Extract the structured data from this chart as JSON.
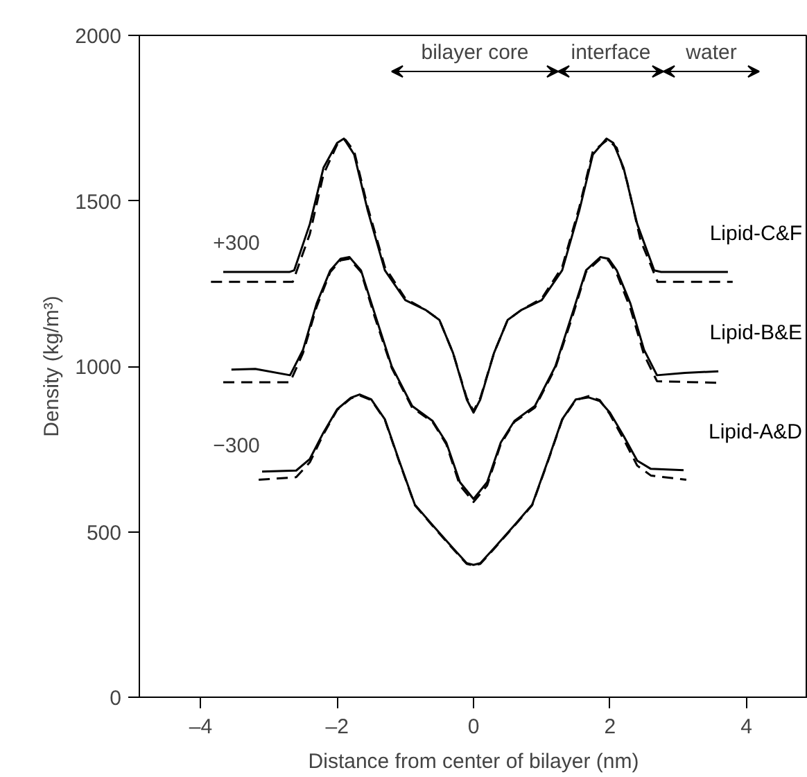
{
  "chart_data": {
    "type": "line",
    "xlabel": "Distance from center of bilayer (nm)",
    "ylabel": "Density (kg/m³)",
    "xlim": [
      -4.9,
      4.9
    ],
    "ylim": [
      0,
      2000
    ],
    "xticks": [
      {
        "value": -4,
        "label": "–4"
      },
      {
        "value": -2,
        "label": "–2"
      },
      0,
      2,
      4
    ],
    "yticks": [
      0,
      500,
      1000,
      1500,
      2000
    ],
    "grid": false,
    "marker": "none",
    "series": [
      {
        "name": "Lipid-C&F",
        "color": "#000000",
        "line_style": "solid",
        "x": [
          -3.67,
          -2.7,
          -2.63,
          -2.4,
          -2.2,
          -2.0,
          -1.9,
          -1.75,
          -1.55,
          -1.3,
          -1.0,
          -0.7,
          -0.5,
          -0.3,
          -0.1,
          0,
          0.1,
          0.3,
          0.5,
          0.7,
          1.0,
          1.3,
          1.55,
          1.75,
          1.95,
          2.05,
          2.2,
          2.4,
          2.65,
          2.75,
          3.73
        ],
        "values": [
          1285,
          1285,
          1290,
          1430,
          1600,
          1675,
          1688,
          1640,
          1470,
          1290,
          1200,
          1170,
          1140,
          1040,
          900,
          860,
          900,
          1040,
          1140,
          1170,
          1200,
          1290,
          1470,
          1640,
          1688,
          1675,
          1600,
          1430,
          1290,
          1285,
          1285
        ]
      },
      {
        "color": "#000000",
        "line_style": "dashed",
        "x": [
          -3.85,
          -2.65,
          -2.4,
          -2.2,
          -2.0,
          -1.88,
          -1.75,
          -1.55,
          -1.3,
          -1.0,
          -0.7,
          -0.5,
          -0.3,
          -0.1,
          0,
          0.1,
          0.3,
          0.5,
          0.7,
          1.0,
          1.3,
          1.55,
          1.75,
          1.97,
          2.1,
          2.25,
          2.45,
          2.7,
          3.8
        ],
        "values": [
          1255,
          1255,
          1400,
          1580,
          1670,
          1685,
          1650,
          1480,
          1300,
          1205,
          1170,
          1140,
          1040,
          905,
          865,
          905,
          1040,
          1140,
          1170,
          1205,
          1300,
          1480,
          1650,
          1685,
          1660,
          1560,
          1380,
          1255,
          1255
        ]
      },
      {
        "name": "Lipid-B&E",
        "color": "#000000",
        "line_style": "solid",
        "x": [
          -3.55,
          -3.2,
          -2.69,
          -2.5,
          -2.3,
          -2.1,
          -1.95,
          -1.82,
          -1.65,
          -1.45,
          -1.2,
          -0.9,
          -0.6,
          -0.4,
          -0.2,
          0,
          0.2,
          0.4,
          0.6,
          0.9,
          1.2,
          1.45,
          1.65,
          1.86,
          1.98,
          2.1,
          2.3,
          2.5,
          2.69,
          3.1,
          3.59
        ],
        "values": [
          990,
          992,
          973,
          1050,
          1190,
          1290,
          1325,
          1330,
          1290,
          1160,
          1000,
          880,
          835,
          770,
          650,
          599,
          650,
          770,
          835,
          880,
          1000,
          1160,
          1290,
          1330,
          1325,
          1290,
          1190,
          1050,
          973,
          980,
          985
        ]
      },
      {
        "color": "#000000",
        "line_style": "dashed",
        "x": [
          -3.67,
          -2.69,
          -2.5,
          -2.3,
          -2.1,
          -1.95,
          -1.82,
          -1.65,
          -1.45,
          -1.2,
          -0.9,
          -0.6,
          -0.4,
          -0.2,
          0,
          0.2,
          0.4,
          0.6,
          0.9,
          1.2,
          1.45,
          1.65,
          1.86,
          1.98,
          2.1,
          2.3,
          2.5,
          2.69,
          3.59
        ],
        "values": [
          952,
          952,
          1040,
          1180,
          1285,
          1320,
          1325,
          1285,
          1150,
          995,
          875,
          832,
          765,
          640,
          590,
          640,
          765,
          832,
          875,
          995,
          1150,
          1285,
          1325,
          1320,
          1280,
          1175,
          1035,
          955,
          950
        ]
      },
      {
        "name": "Lipid-A&D",
        "color": "#000000",
        "line_style": "solid",
        "x": [
          -3.1,
          -2.6,
          -2.4,
          -2.2,
          -2.0,
          -1.8,
          -1.67,
          -1.5,
          -1.3,
          -1.1,
          -0.86,
          -0.6,
          -0.3,
          -0.1,
          0,
          0.1,
          0.3,
          0.6,
          0.86,
          1.1,
          1.3,
          1.5,
          1.69,
          1.85,
          2.0,
          2.2,
          2.4,
          2.6,
          3.08
        ],
        "values": [
          682,
          685,
          720,
          800,
          870,
          905,
          915,
          900,
          840,
          720,
          582,
          520,
          450,
          405,
          400,
          405,
          450,
          520,
          582,
          720,
          840,
          900,
          906,
          895,
          860,
          790,
          715,
          690,
          686
        ]
      },
      {
        "color": "#000000",
        "line_style": "dashed",
        "x": [
          -3.15,
          -2.6,
          -2.4,
          -2.2,
          -2.0,
          -1.8,
          -1.67,
          -1.5,
          -1.3,
          -1.1,
          -0.86,
          -0.6,
          -0.3,
          -0.1,
          0,
          0.1,
          0.3,
          0.6,
          0.86,
          1.1,
          1.3,
          1.5,
          1.69,
          1.85,
          2.0,
          2.2,
          2.4,
          2.6,
          3.12
        ],
        "values": [
          657,
          665,
          710,
          795,
          868,
          903,
          912,
          898,
          838,
          718,
          580,
          518,
          448,
          403,
          398,
          403,
          448,
          518,
          580,
          718,
          838,
          898,
          910,
          898,
          855,
          780,
          700,
          670,
          657
        ]
      }
    ],
    "annotations": [
      "+300",
      "−300",
      "bilayer core",
      "interface",
      "water"
    ]
  }
}
